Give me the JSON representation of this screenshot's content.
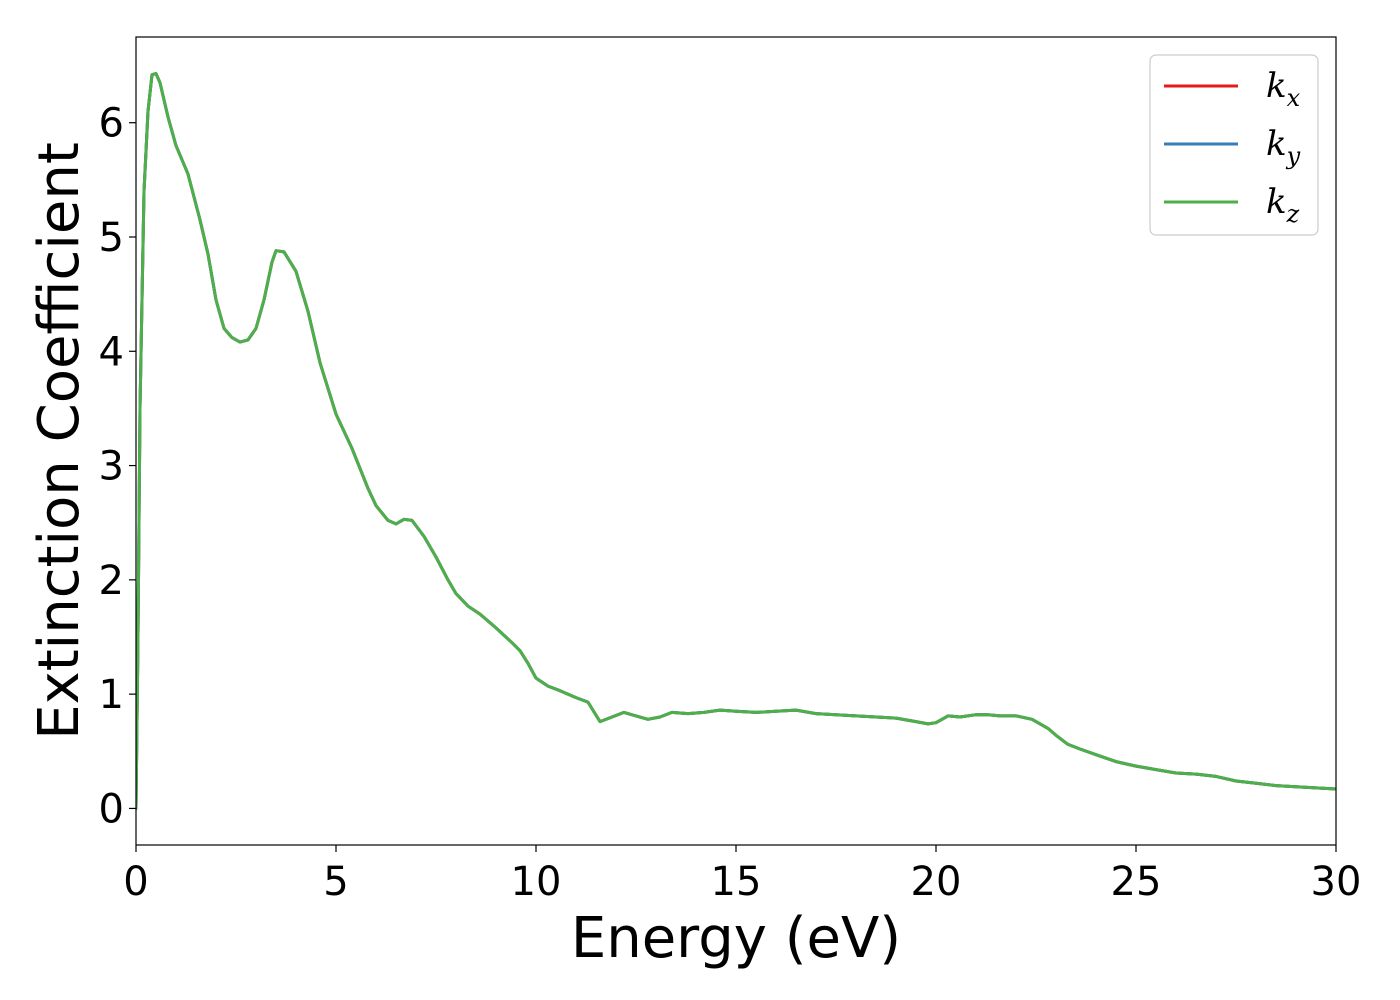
{
  "chart_data": {
    "type": "line",
    "title": "",
    "xlabel": "Energy (eV)",
    "ylabel": "Extinction Coefficient",
    "xlim": [
      0,
      30
    ],
    "ylim": [
      -0.32,
      6.75
    ],
    "xticks": [
      0,
      5,
      10,
      15,
      20,
      25,
      30
    ],
    "yticks": [
      0,
      1,
      2,
      3,
      4,
      5,
      6
    ],
    "grid": false,
    "legend_position": "top-right",
    "series": [
      {
        "name": "k_x",
        "legend_base": "k",
        "legend_sub": "x",
        "color": "#e41a1c",
        "x": [
          0,
          0.05,
          0.1,
          0.2,
          0.3,
          0.4,
          0.5,
          0.6,
          0.8,
          1.0,
          1.3,
          1.6,
          1.8,
          2.0,
          2.2,
          2.4,
          2.6,
          2.8,
          3.0,
          3.2,
          3.4,
          3.5,
          3.7,
          4.0,
          4.3,
          4.6,
          5.0,
          5.4,
          5.8,
          6.0,
          6.3,
          6.5,
          6.7,
          6.9,
          7.2,
          7.5,
          7.8,
          8.0,
          8.3,
          8.6,
          9.0,
          9.4,
          9.6,
          9.8,
          10.0,
          10.3,
          10.6,
          11.0,
          11.3,
          11.6,
          11.9,
          12.2,
          12.5,
          12.8,
          13.1,
          13.4,
          13.8,
          14.2,
          14.6,
          15.0,
          15.5,
          16.0,
          16.5,
          17.0,
          17.5,
          18.0,
          18.5,
          19.0,
          19.5,
          19.8,
          20.0,
          20.3,
          20.6,
          21.0,
          21.3,
          21.6,
          22.0,
          22.4,
          22.8,
          23.0,
          23.3,
          23.6,
          24.0,
          24.5,
          25.0,
          25.5,
          26.0,
          26.5,
          27.0,
          27.5,
          28.0,
          28.5,
          29.0,
          29.5,
          30.0
        ],
        "y": [
          0.0,
          1.5,
          3.5,
          5.4,
          6.1,
          6.42,
          6.43,
          6.35,
          6.05,
          5.8,
          5.55,
          5.15,
          4.85,
          4.45,
          4.2,
          4.12,
          4.08,
          4.1,
          4.2,
          4.45,
          4.78,
          4.88,
          4.87,
          4.7,
          4.35,
          3.9,
          3.45,
          3.15,
          2.8,
          2.65,
          2.52,
          2.49,
          2.53,
          2.52,
          2.38,
          2.2,
          2.0,
          1.88,
          1.77,
          1.7,
          1.58,
          1.45,
          1.38,
          1.27,
          1.14,
          1.07,
          1.03,
          0.97,
          0.93,
          0.76,
          0.8,
          0.84,
          0.81,
          0.78,
          0.8,
          0.84,
          0.83,
          0.84,
          0.86,
          0.85,
          0.84,
          0.85,
          0.86,
          0.83,
          0.82,
          0.81,
          0.8,
          0.79,
          0.76,
          0.74,
          0.75,
          0.81,
          0.8,
          0.82,
          0.82,
          0.81,
          0.81,
          0.78,
          0.7,
          0.64,
          0.56,
          0.52,
          0.47,
          0.41,
          0.37,
          0.34,
          0.31,
          0.3,
          0.28,
          0.24,
          0.22,
          0.2,
          0.19,
          0.18,
          0.17
        ]
      },
      {
        "name": "k_y",
        "legend_base": "k",
        "legend_sub": "y",
        "color": "#377eb8",
        "x": [
          0,
          0.05,
          0.1,
          0.2,
          0.3,
          0.4,
          0.5,
          0.6,
          0.8,
          1.0,
          1.3,
          1.6,
          1.8,
          2.0,
          2.2,
          2.4,
          2.6,
          2.8,
          3.0,
          3.2,
          3.4,
          3.5,
          3.7,
          4.0,
          4.3,
          4.6,
          5.0,
          5.4,
          5.8,
          6.0,
          6.3,
          6.5,
          6.7,
          6.9,
          7.2,
          7.5,
          7.8,
          8.0,
          8.3,
          8.6,
          9.0,
          9.4,
          9.6,
          9.8,
          10.0,
          10.3,
          10.6,
          11.0,
          11.3,
          11.6,
          11.9,
          12.2,
          12.5,
          12.8,
          13.1,
          13.4,
          13.8,
          14.2,
          14.6,
          15.0,
          15.5,
          16.0,
          16.5,
          17.0,
          17.5,
          18.0,
          18.5,
          19.0,
          19.5,
          19.8,
          20.0,
          20.3,
          20.6,
          21.0,
          21.3,
          21.6,
          22.0,
          22.4,
          22.8,
          23.0,
          23.3,
          23.6,
          24.0,
          24.5,
          25.0,
          25.5,
          26.0,
          26.5,
          27.0,
          27.5,
          28.0,
          28.5,
          29.0,
          29.5,
          30.0
        ],
        "y": [
          0.0,
          1.5,
          3.5,
          5.4,
          6.1,
          6.42,
          6.43,
          6.35,
          6.05,
          5.8,
          5.55,
          5.15,
          4.85,
          4.45,
          4.2,
          4.12,
          4.08,
          4.1,
          4.2,
          4.45,
          4.78,
          4.88,
          4.87,
          4.7,
          4.35,
          3.9,
          3.45,
          3.15,
          2.8,
          2.65,
          2.52,
          2.49,
          2.53,
          2.52,
          2.38,
          2.2,
          2.0,
          1.88,
          1.77,
          1.7,
          1.58,
          1.45,
          1.38,
          1.27,
          1.14,
          1.07,
          1.03,
          0.97,
          0.93,
          0.76,
          0.8,
          0.84,
          0.81,
          0.78,
          0.8,
          0.84,
          0.83,
          0.84,
          0.86,
          0.85,
          0.84,
          0.85,
          0.86,
          0.83,
          0.82,
          0.81,
          0.8,
          0.79,
          0.76,
          0.74,
          0.75,
          0.81,
          0.8,
          0.82,
          0.82,
          0.81,
          0.81,
          0.78,
          0.7,
          0.64,
          0.56,
          0.52,
          0.47,
          0.41,
          0.37,
          0.34,
          0.31,
          0.3,
          0.28,
          0.24,
          0.22,
          0.2,
          0.19,
          0.18,
          0.17
        ]
      },
      {
        "name": "k_z",
        "legend_base": "k",
        "legend_sub": "z",
        "color": "#4daf4a",
        "x": [
          0,
          0.05,
          0.1,
          0.2,
          0.3,
          0.4,
          0.5,
          0.6,
          0.8,
          1.0,
          1.3,
          1.6,
          1.8,
          2.0,
          2.2,
          2.4,
          2.6,
          2.8,
          3.0,
          3.2,
          3.4,
          3.5,
          3.7,
          4.0,
          4.3,
          4.6,
          5.0,
          5.4,
          5.8,
          6.0,
          6.3,
          6.5,
          6.7,
          6.9,
          7.2,
          7.5,
          7.8,
          8.0,
          8.3,
          8.6,
          9.0,
          9.4,
          9.6,
          9.8,
          10.0,
          10.3,
          10.6,
          11.0,
          11.3,
          11.6,
          11.9,
          12.2,
          12.5,
          12.8,
          13.1,
          13.4,
          13.8,
          14.2,
          14.6,
          15.0,
          15.5,
          16.0,
          16.5,
          17.0,
          17.5,
          18.0,
          18.5,
          19.0,
          19.5,
          19.8,
          20.0,
          20.3,
          20.6,
          21.0,
          21.3,
          21.6,
          22.0,
          22.4,
          22.8,
          23.0,
          23.3,
          23.6,
          24.0,
          24.5,
          25.0,
          25.5,
          26.0,
          26.5,
          27.0,
          27.5,
          28.0,
          28.5,
          29.0,
          29.5,
          30.0
        ],
        "y": [
          0.0,
          1.5,
          3.5,
          5.4,
          6.1,
          6.42,
          6.43,
          6.35,
          6.05,
          5.8,
          5.55,
          5.15,
          4.85,
          4.45,
          4.2,
          4.12,
          4.08,
          4.1,
          4.2,
          4.45,
          4.78,
          4.88,
          4.87,
          4.7,
          4.35,
          3.9,
          3.45,
          3.15,
          2.8,
          2.65,
          2.52,
          2.49,
          2.53,
          2.52,
          2.38,
          2.2,
          2.0,
          1.88,
          1.77,
          1.7,
          1.58,
          1.45,
          1.38,
          1.27,
          1.14,
          1.07,
          1.03,
          0.97,
          0.93,
          0.76,
          0.8,
          0.84,
          0.81,
          0.78,
          0.8,
          0.84,
          0.83,
          0.84,
          0.86,
          0.85,
          0.84,
          0.85,
          0.86,
          0.83,
          0.82,
          0.81,
          0.8,
          0.79,
          0.76,
          0.74,
          0.75,
          0.81,
          0.8,
          0.82,
          0.82,
          0.81,
          0.81,
          0.78,
          0.7,
          0.64,
          0.56,
          0.52,
          0.47,
          0.41,
          0.37,
          0.34,
          0.31,
          0.3,
          0.28,
          0.24,
          0.22,
          0.2,
          0.19,
          0.18,
          0.17
        ]
      }
    ]
  }
}
